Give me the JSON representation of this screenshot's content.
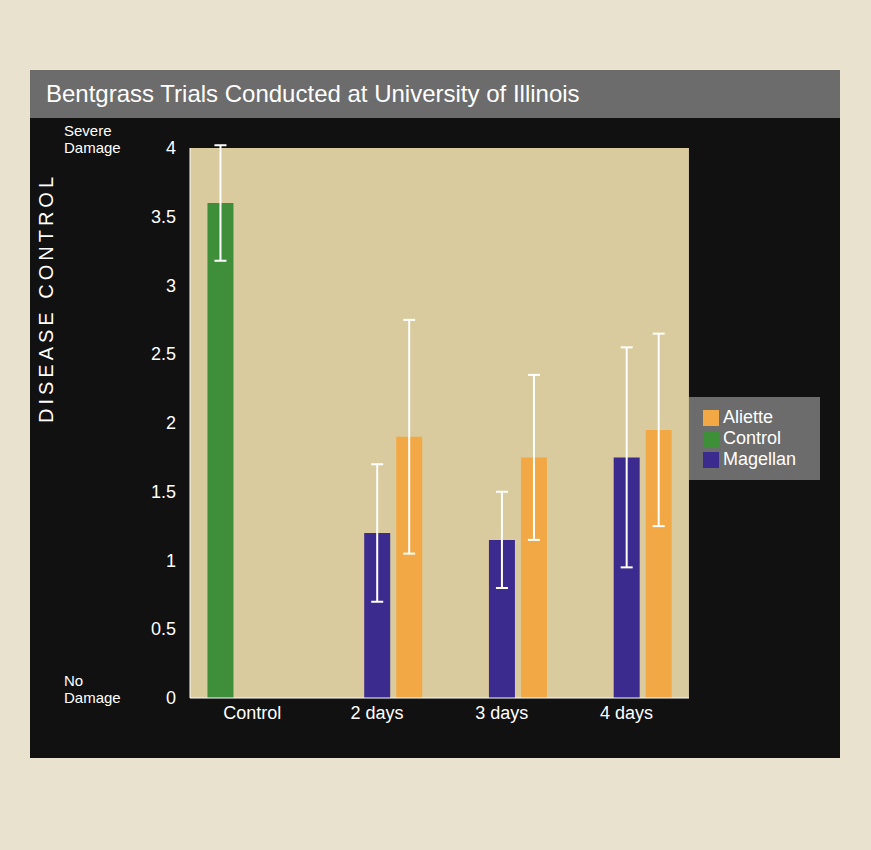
{
  "chart_data": {
    "type": "bar",
    "title": "Bentgrass Trials Conducted at University of Illinois",
    "y_label": "DISEASE CONTROL",
    "categories": [
      "Control",
      "2 days",
      "3 days",
      "4 days"
    ],
    "series": [
      {
        "name": "Control",
        "color": "#3f8f3a",
        "values": [
          3.6,
          null,
          null,
          null
        ],
        "errors": [
          0.42,
          null,
          null,
          null
        ]
      },
      {
        "name": "Magellan",
        "color": "#3b2b8e",
        "values": [
          null,
          1.2,
          1.15,
          1.75
        ],
        "errors": [
          null,
          0.5,
          0.35,
          0.8
        ]
      },
      {
        "name": "Aliette",
        "color": "#f2a945",
        "values": [
          null,
          1.9,
          1.75,
          1.95
        ],
        "errors": [
          null,
          0.85,
          0.6,
          0.7
        ]
      }
    ],
    "ylim": [
      0,
      4
    ],
    "yticks": [
      0,
      0.5,
      1,
      1.5,
      2,
      2.5,
      3,
      3.5,
      4
    ],
    "annotations": [
      {
        "text": "Severe Damage",
        "y": 4
      },
      {
        "text": "No Damage",
        "y": 0
      }
    ],
    "grid": false,
    "legend": "right"
  }
}
